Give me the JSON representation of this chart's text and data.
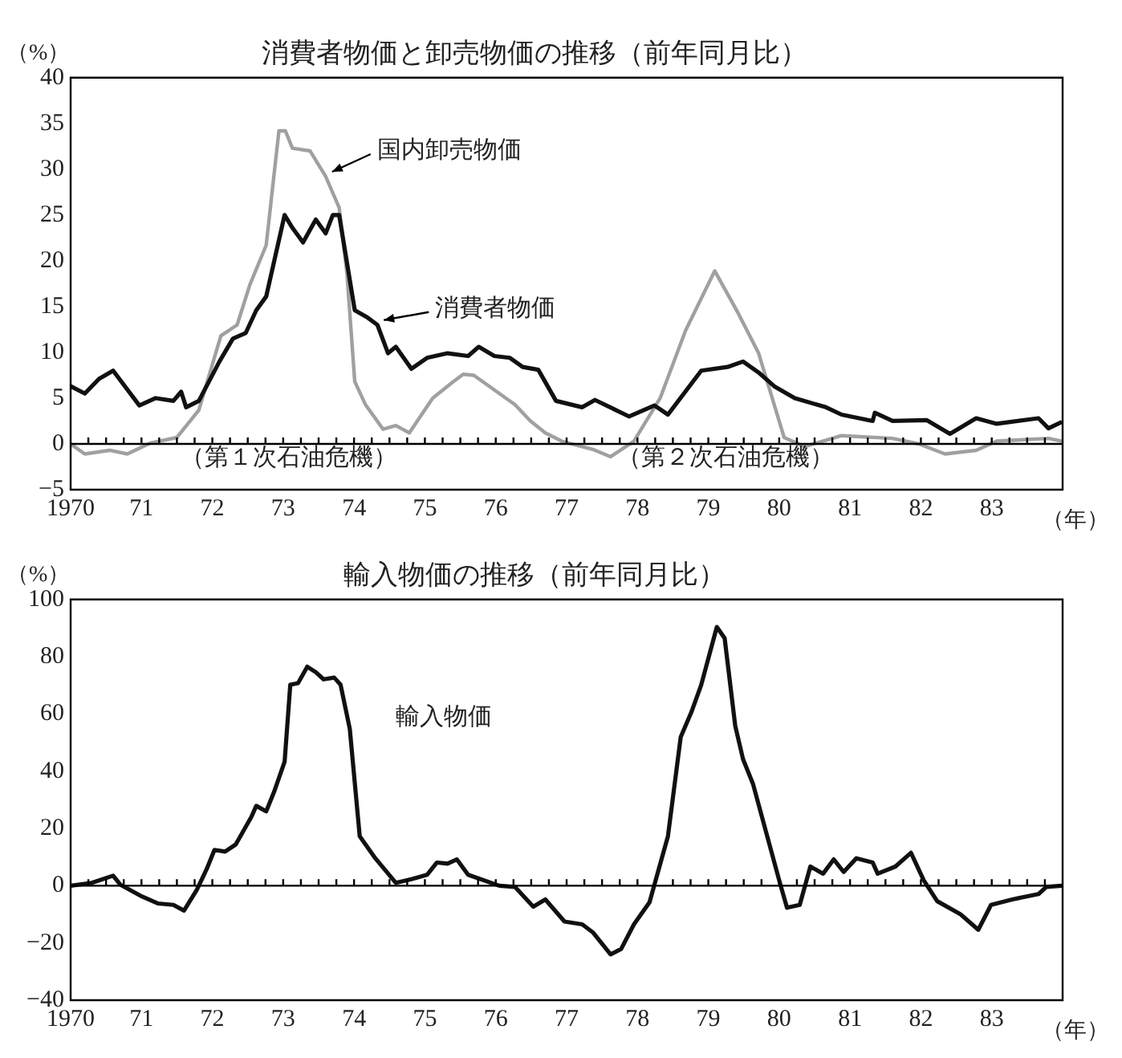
{
  "chart_data": [
    {
      "type": "line",
      "title": "消費者物価と卸売物価の推移（前年同月比）",
      "ylabel": "（%）",
      "xlabel": "（年）",
      "xlim": [
        1970,
        1984
      ],
      "xticks": [
        {
          "value": 1970,
          "label": "1970"
        },
        {
          "value": 1971,
          "label": "71"
        },
        {
          "value": 1972,
          "label": "72"
        },
        {
          "value": 1973,
          "label": "73"
        },
        {
          "value": 1974,
          "label": "74"
        },
        {
          "value": 1975,
          "label": "75"
        },
        {
          "value": 1976,
          "label": "76"
        },
        {
          "value": 1977,
          "label": "77"
        },
        {
          "value": 1978,
          "label": "78"
        },
        {
          "value": 1979,
          "label": "79"
        },
        {
          "value": 1980,
          "label": "80"
        },
        {
          "value": 1981,
          "label": "81"
        },
        {
          "value": 1982,
          "label": "82"
        },
        {
          "value": 1983,
          "label": "83"
        }
      ],
      "ylim": [
        -5,
        40
      ],
      "yticks": [
        {
          "value": -5,
          "label": "−5"
        },
        0,
        5,
        10,
        15,
        20,
        25,
        30,
        35,
        40
      ],
      "grid": false,
      "legend": false,
      "marker": "none",
      "line_style": "solid",
      "ref_lines": [
        {
          "axis": "y",
          "value": 0,
          "color": "#000000"
        }
      ],
      "annotations": [
        "（第１次石油危機）",
        "（第２次石油危機）"
      ],
      "series": [
        {
          "name": "消費者物価",
          "color": "#111111",
          "x": [
            1970.0,
            1970.2,
            1970.4,
            1970.6,
            1970.97,
            1971.2,
            1971.45,
            1971.56,
            1971.63,
            1971.81,
            1972.1,
            1972.29,
            1972.47,
            1972.62,
            1972.76,
            1973.02,
            1973.13,
            1973.28,
            1973.46,
            1973.6,
            1973.7,
            1973.79,
            1974.01,
            1974.19,
            1974.33,
            1974.48,
            1974.59,
            1974.81,
            1975.03,
            1975.32,
            1975.61,
            1975.76,
            1975.98,
            1976.2,
            1976.38,
            1976.6,
            1976.85,
            1977.22,
            1977.4,
            1977.88,
            1978.24,
            1978.43,
            1978.9,
            1979.27,
            1979.49,
            1979.71,
            1979.93,
            1980.22,
            1980.66,
            1980.88,
            1981.32,
            1981.35,
            1981.6,
            1982.08,
            1982.41,
            1982.78,
            1983.07,
            1983.66,
            1983.8,
            1983.99
          ],
          "values": [
            6.3,
            5.5,
            7.1,
            8,
            4.2,
            5,
            4.7,
            5.7,
            4,
            4.7,
            9,
            11.5,
            12.1,
            14.6,
            16.1,
            25,
            23.6,
            22,
            24.5,
            23,
            25,
            25,
            14.6,
            13.8,
            13,
            9.9,
            10.6,
            8.2,
            9.4,
            9.9,
            9.6,
            10.6,
            9.6,
            9.4,
            8.4,
            8.1,
            4.7,
            4,
            4.8,
            3,
            4.2,
            3.2,
            8,
            8.4,
            9,
            7.8,
            6.3,
            5,
            4,
            3.2,
            2.5,
            3.4,
            2.5,
            2.6,
            1.1,
            2.8,
            2.2,
            2.8,
            1.7,
            2.4
          ]
        },
        {
          "name": "国内卸売物価",
          "color": "#a0a0a0",
          "x": [
            1970.0,
            1970.2,
            1970.55,
            1970.8,
            1971.13,
            1971.5,
            1971.81,
            1972.12,
            1972.35,
            1972.53,
            1972.76,
            1972.94,
            1973.03,
            1973.13,
            1973.38,
            1973.6,
            1973.79,
            1973.9,
            1974.01,
            1974.16,
            1974.41,
            1974.59,
            1974.78,
            1975.11,
            1975.4,
            1975.54,
            1975.69,
            1975.98,
            1976.27,
            1976.49,
            1976.7,
            1976.93,
            1977.37,
            1977.62,
            1977.95,
            1978.32,
            1978.68,
            1979.09,
            1979.42,
            1979.71,
            1980.07,
            1980.36,
            1980.88,
            1981.6,
            1981.97,
            1982.34,
            1982.78,
            1983.07,
            1983.8,
            1983.99
          ],
          "values": [
            0,
            -1.1,
            -0.7,
            -1.1,
            0.1,
            0.7,
            3.7,
            11.8,
            13,
            17.4,
            21.7,
            34.2,
            34.2,
            32.3,
            32,
            29.2,
            25.8,
            18.6,
            6.8,
            4.3,
            1.6,
            2,
            1.2,
            5,
            6.8,
            7.6,
            7.5,
            5.9,
            4.3,
            2.5,
            1.2,
            0.3,
            -0.6,
            -1.4,
            0.3,
            5,
            12.4,
            18.9,
            14.3,
            9.9,
            0.7,
            -0.3,
            0.9,
            0.6,
            0,
            -1.1,
            -0.7,
            0.3,
            0.6,
            0.3
          ]
        }
      ]
    },
    {
      "type": "line",
      "title": "輸入物価の推移（前年同月比）",
      "ylabel": "（%）",
      "xlabel": "（年）",
      "xlim": [
        1970,
        1984
      ],
      "xticks": [
        {
          "value": 1970,
          "label": "1970"
        },
        {
          "value": 1971,
          "label": "71"
        },
        {
          "value": 1972,
          "label": "72"
        },
        {
          "value": 1973,
          "label": "73"
        },
        {
          "value": 1974,
          "label": "74"
        },
        {
          "value": 1975,
          "label": "75"
        },
        {
          "value": 1976,
          "label": "76"
        },
        {
          "value": 1977,
          "label": "77"
        },
        {
          "value": 1978,
          "label": "78"
        },
        {
          "value": 1979,
          "label": "79"
        },
        {
          "value": 1980,
          "label": "80"
        },
        {
          "value": 1981,
          "label": "81"
        },
        {
          "value": 1982,
          "label": "82"
        },
        {
          "value": 1983,
          "label": "83"
        }
      ],
      "ylim": [
        -40,
        100
      ],
      "yticks": [
        {
          "value": -40,
          "label": "−40"
        },
        {
          "value": -20,
          "label": "−20"
        },
        0,
        20,
        40,
        60,
        80,
        100
      ],
      "grid": false,
      "legend": false,
      "marker": "none",
      "line_style": "solid",
      "ref_lines": [
        {
          "axis": "y",
          "value": 0,
          "color": "#000000"
        }
      ],
      "series": [
        {
          "name": "輸入物価",
          "color": "#111111",
          "x": [
            1970.0,
            1970.3,
            1970.6,
            1970.7,
            1971.01,
            1971.23,
            1971.45,
            1971.6,
            1971.78,
            1971.92,
            1972.03,
            1972.18,
            1972.33,
            1972.55,
            1972.62,
            1972.76,
            1972.87,
            1973.02,
            1973.1,
            1973.21,
            1973.34,
            1973.46,
            1973.57,
            1973.72,
            1973.81,
            1973.94,
            1974.08,
            1974.3,
            1974.59,
            1974.81,
            1975.03,
            1975.17,
            1975.32,
            1975.45,
            1975.61,
            1976.05,
            1976.27,
            1976.53,
            1976.7,
            1976.97,
            1977.22,
            1977.37,
            1977.62,
            1977.77,
            1977.95,
            1978.17,
            1978.43,
            1978.61,
            1978.76,
            1978.9,
            1979.12,
            1979.23,
            1979.38,
            1979.49,
            1979.63,
            1980.0,
            1980.11,
            1980.29,
            1980.44,
            1980.62,
            1980.77,
            1980.91,
            1981.09,
            1981.32,
            1981.39,
            1981.64,
            1981.86,
            1982.04,
            1982.23,
            1982.56,
            1982.81,
            1982.99,
            1983.29,
            1983.66,
            1983.77,
            1983.99
          ],
          "values": [
            0,
            1,
            3.5,
            0.4,
            -3.8,
            -6.2,
            -6.7,
            -8.7,
            -1.5,
            5.8,
            12.5,
            11.9,
            14.4,
            24,
            27.9,
            26,
            32.7,
            43.3,
            70.2,
            70.8,
            76.5,
            74.6,
            72.1,
            72.7,
            70.2,
            54.8,
            17.3,
            9.6,
            1,
            2.3,
            3.8,
            8.1,
            7.7,
            9.2,
            3.8,
            0,
            -0.4,
            -7.3,
            -4.8,
            -12.5,
            -13.5,
            -16.3,
            -24,
            -22.1,
            -13.5,
            -5.8,
            17.3,
            51.9,
            60.6,
            70.2,
            90.4,
            86.5,
            55.8,
            44.2,
            35.6,
            1.9,
            -7.7,
            -6.7,
            6.7,
            4.2,
            9.2,
            4.8,
            9.6,
            8.1,
            4.2,
            6.7,
            11.5,
            1.9,
            -5.4,
            -10,
            -15.4,
            -6.7,
            -4.8,
            -2.9,
            -0.4,
            0
          ]
        }
      ]
    }
  ]
}
